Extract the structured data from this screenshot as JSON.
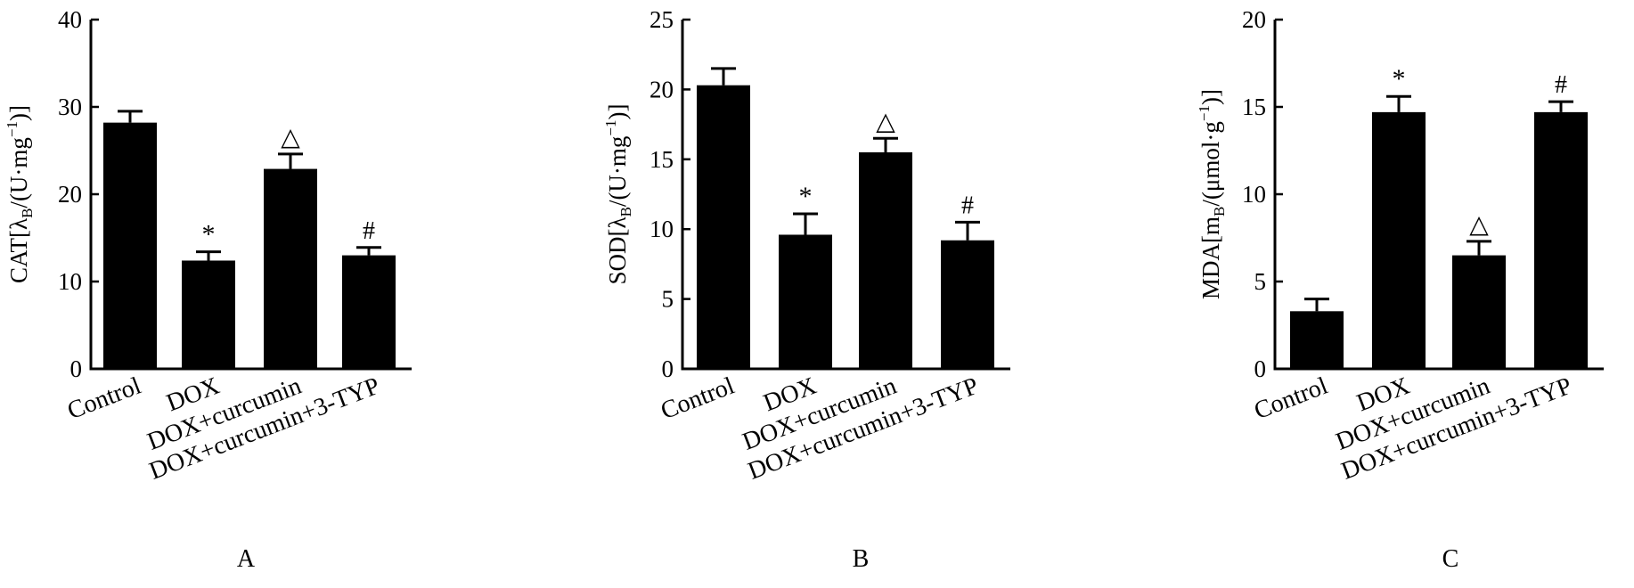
{
  "chart_data": [
    {
      "type": "bar",
      "panel_label": "A",
      "categories": [
        "Control",
        "DOX",
        "DOX+curcumin",
        "DOX+curcumin+3-TYP"
      ],
      "values": [
        28.2,
        12.4,
        22.9,
        13.0
      ],
      "errors": [
        1.3,
        1.0,
        1.7,
        0.9
      ],
      "annotations": [
        "",
        "*",
        "△",
        "#"
      ],
      "ylabel": {
        "main": "CAT[λ",
        "sub": "B",
        "unit_pre": "/(U·mg",
        "sup": "−1",
        "unit_post": ")]"
      },
      "ylim": [
        0,
        40
      ],
      "yticks": [
        0,
        10,
        20,
        30,
        40
      ],
      "bar_color": "#000000",
      "grid": false
    },
    {
      "type": "bar",
      "panel_label": "B",
      "categories": [
        "Control",
        "DOX",
        "DOX+curcumin",
        "DOX+curcumin+3-TYP"
      ],
      "values": [
        20.3,
        9.6,
        15.5,
        9.2
      ],
      "errors": [
        1.2,
        1.5,
        1.0,
        1.3
      ],
      "annotations": [
        "",
        "*",
        "△",
        "#"
      ],
      "ylabel": {
        "main": "SOD[λ",
        "sub": "B",
        "unit_pre": "/(U·mg",
        "sup": "−1",
        "unit_post": ")]"
      },
      "ylim": [
        0,
        25
      ],
      "yticks": [
        0,
        5,
        10,
        15,
        20,
        25
      ],
      "bar_color": "#000000",
      "grid": false
    },
    {
      "type": "bar",
      "panel_label": "C",
      "categories": [
        "Control",
        "DOX",
        "DOX+curcumin",
        "DOX+curcumin+3-TYP"
      ],
      "values": [
        3.3,
        14.7,
        6.5,
        14.7
      ],
      "errors": [
        0.7,
        0.9,
        0.8,
        0.6
      ],
      "annotations": [
        "",
        "*",
        "△",
        "#"
      ],
      "ylabel": {
        "main": "MDA[m",
        "sub": "B",
        "unit_pre": "/(μmol·g",
        "sup": "−1",
        "unit_post": ")]"
      },
      "ylim": [
        0,
        20
      ],
      "yticks": [
        0,
        5,
        10,
        15,
        20
      ],
      "bar_color": "#000000",
      "grid": false
    }
  ]
}
